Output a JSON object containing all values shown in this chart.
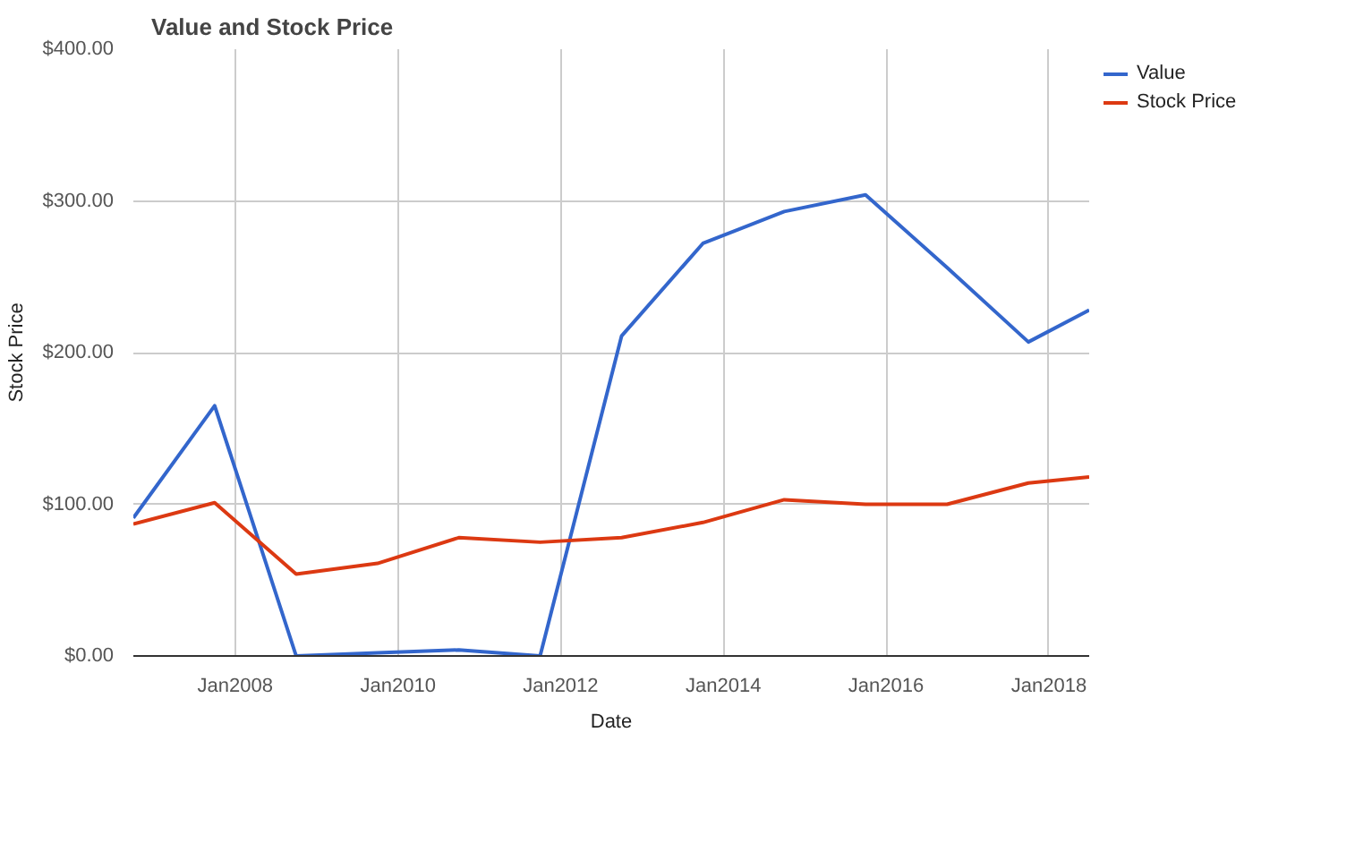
{
  "chart_data": {
    "type": "line",
    "title": "Value and Stock Price",
    "xlabel": "Date",
    "ylabel": "Stock Price",
    "x": [
      "2006-10",
      "2007-10",
      "2008-10",
      "2009-10",
      "2010-10",
      "2011-10",
      "2012-10",
      "2013-10",
      "2014-10",
      "2015-10",
      "2016-10",
      "2017-10",
      "2018-07"
    ],
    "series": [
      {
        "name": "Value",
        "color": "#3366cc",
        "values": [
          91,
          165,
          0,
          2,
          4,
          0,
          211,
          272,
          293,
          304,
          256,
          207,
          228
        ]
      },
      {
        "name": "Stock Price",
        "color": "#dc3912",
        "values": [
          87,
          101,
          54,
          61,
          78,
          75,
          78,
          88,
          103,
          100,
          100,
          114,
          118
        ]
      }
    ],
    "xlim": [
      "2006-10",
      "2018-07"
    ],
    "xticks": [
      {
        "value": "2008-01",
        "label": "Jan2008"
      },
      {
        "value": "2010-01",
        "label": "Jan2010"
      },
      {
        "value": "2012-01",
        "label": "Jan2012"
      },
      {
        "value": "2014-01",
        "label": "Jan2014"
      },
      {
        "value": "2016-01",
        "label": "Jan2016"
      },
      {
        "value": "2018-01",
        "label": "Jan2018"
      }
    ],
    "ylim": [
      0,
      400
    ],
    "yticks": [
      {
        "value": 0,
        "label": "$0.00"
      },
      {
        "value": 100,
        "label": "$100.00"
      },
      {
        "value": 200,
        "label": "$200.00"
      },
      {
        "value": 300,
        "label": "$300.00"
      },
      {
        "value": 400,
        "label": "$400.00"
      }
    ],
    "grid": true,
    "legend": "right",
    "marker": "none",
    "line_style": "solid"
  }
}
